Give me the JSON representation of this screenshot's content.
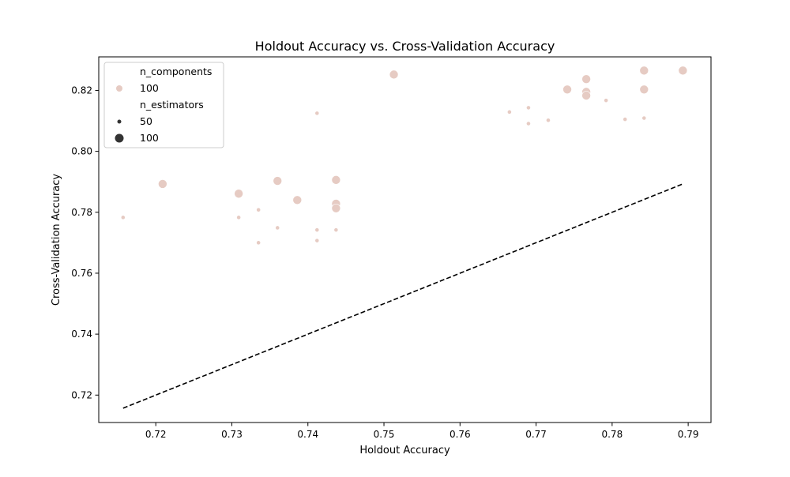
{
  "chart_data": {
    "type": "scatter",
    "title": "Holdout Accuracy vs. Cross-Validation Accuracy",
    "xlabel": "Holdout Accuracy",
    "ylabel": "Cross-Validation Accuracy",
    "xlim": [
      0.7125,
      0.793
    ],
    "ylim": [
      0.711,
      0.831
    ],
    "xticks": [
      0.72,
      0.73,
      0.74,
      0.75,
      0.76,
      0.77,
      0.78,
      0.79
    ],
    "yticks": [
      0.72,
      0.74,
      0.76,
      0.78,
      0.8,
      0.82
    ],
    "xtick_labels": [
      "0.72",
      "0.73",
      "0.74",
      "0.75",
      "0.76",
      "0.77",
      "0.78",
      "0.79"
    ],
    "ytick_labels": [
      "0.72",
      "0.74",
      "0.76",
      "0.78",
      "0.80",
      "0.82"
    ],
    "grid": false,
    "legend_position": "top-left",
    "point_color": "#e6cbc3",
    "legend": {
      "hue_title": "n_components",
      "hue_entries": [
        {
          "label": "100",
          "color": "#e6cbc3"
        }
      ],
      "size_title": "n_estimators",
      "size_entries": [
        {
          "label": "50",
          "value": 50
        },
        {
          "label": "100",
          "value": 100
        }
      ]
    },
    "reference_line": {
      "style": "dashed",
      "color": "#000000",
      "points": [
        [
          0.7157,
          0.7157
        ],
        [
          0.7893,
          0.7893
        ]
      ]
    },
    "points": [
      {
        "x": 0.7157,
        "y": 0.7783,
        "n_estimators": 50
      },
      {
        "x": 0.7209,
        "y": 0.7893,
        "n_estimators": 100
      },
      {
        "x": 0.7309,
        "y": 0.7861,
        "n_estimators": 100
      },
      {
        "x": 0.7309,
        "y": 0.7783,
        "n_estimators": 50
      },
      {
        "x": 0.7335,
        "y": 0.7808,
        "n_estimators": 50
      },
      {
        "x": 0.7335,
        "y": 0.77,
        "n_estimators": 50
      },
      {
        "x": 0.736,
        "y": 0.7903,
        "n_estimators": 100
      },
      {
        "x": 0.736,
        "y": 0.7749,
        "n_estimators": 50
      },
      {
        "x": 0.7386,
        "y": 0.784,
        "n_estimators": 100
      },
      {
        "x": 0.7412,
        "y": 0.8125,
        "n_estimators": 50
      },
      {
        "x": 0.7412,
        "y": 0.7742,
        "n_estimators": 50
      },
      {
        "x": 0.7412,
        "y": 0.7707,
        "n_estimators": 50
      },
      {
        "x": 0.7437,
        "y": 0.7906,
        "n_estimators": 100
      },
      {
        "x": 0.7437,
        "y": 0.7828,
        "n_estimators": 100
      },
      {
        "x": 0.7437,
        "y": 0.7813,
        "n_estimators": 100
      },
      {
        "x": 0.7437,
        "y": 0.7742,
        "n_estimators": 50
      },
      {
        "x": 0.7513,
        "y": 0.8252,
        "n_estimators": 100
      },
      {
        "x": 0.7665,
        "y": 0.8129,
        "n_estimators": 50
      },
      {
        "x": 0.769,
        "y": 0.8143,
        "n_estimators": 50
      },
      {
        "x": 0.769,
        "y": 0.8091,
        "n_estimators": 50
      },
      {
        "x": 0.7716,
        "y": 0.8102,
        "n_estimators": 50
      },
      {
        "x": 0.7741,
        "y": 0.8203,
        "n_estimators": 100
      },
      {
        "x": 0.7766,
        "y": 0.8237,
        "n_estimators": 100
      },
      {
        "x": 0.7766,
        "y": 0.8195,
        "n_estimators": 100
      },
      {
        "x": 0.7766,
        "y": 0.8183,
        "n_estimators": 100
      },
      {
        "x": 0.7792,
        "y": 0.8167,
        "n_estimators": 50
      },
      {
        "x": 0.7817,
        "y": 0.8105,
        "n_estimators": 50
      },
      {
        "x": 0.7842,
        "y": 0.8265,
        "n_estimators": 100
      },
      {
        "x": 0.7842,
        "y": 0.8203,
        "n_estimators": 100
      },
      {
        "x": 0.7842,
        "y": 0.8109,
        "n_estimators": 50
      },
      {
        "x": 0.7893,
        "y": 0.8265,
        "n_estimators": 100
      }
    ]
  }
}
